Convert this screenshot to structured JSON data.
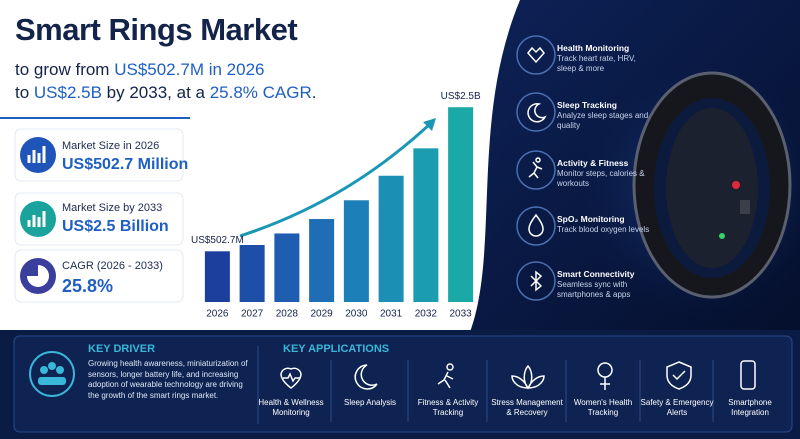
{
  "header": {
    "title": "Smart Rings Market",
    "subtitle": [
      [
        "to grow from ",
        "US$502.7M in 2026"
      ],
      [
        "to ",
        "US$2.5B",
        " by 2033, at a ",
        "25.8% CAGR",
        "."
      ]
    ]
  },
  "stats": [
    {
      "label": "Market Size in 2026",
      "value": "US$502.7 Million"
    },
    {
      "label": "Market Size by 2033",
      "value": "US$2.5 Billion"
    },
    {
      "label": "CAGR (2026 - 2033)",
      "value": "25.8%"
    }
  ],
  "chart_data": {
    "type": "bar",
    "categories": [
      "2026",
      "2027",
      "2028",
      "2029",
      "2030",
      "2031",
      "2032",
      "2033"
    ],
    "values": [
      502.7,
      590,
      750,
      950,
      1210,
      1550,
      1930,
      2500
    ],
    "value_labels": [
      "US$502.7M",
      null,
      null,
      null,
      null,
      null,
      null,
      "US$2.5B"
    ],
    "colors": [
      "#1c3f9e",
      "#1d4ea8",
      "#1e5db0",
      "#1e6db5",
      "#1d7fb8",
      "#1c8fb5",
      "#1b9daf",
      "#1aa9a6"
    ],
    "ylim": [
      -200,
      2600
    ]
  },
  "features": [
    {
      "title": "Health Monitoring",
      "text": "Track heart rate, HRV, sleep & more"
    },
    {
      "title": "Sleep Tracking",
      "text": "Analyze sleep stages and quality"
    },
    {
      "title": "Activity & Fitness",
      "text": "Monitor steps, calories & workouts"
    },
    {
      "title": "SpO₂ Monitoring",
      "text": "Track blood oxygen levels"
    },
    {
      "title": "Smart Connectivity",
      "text": "Seamless sync with smartphones & apps"
    }
  ],
  "key_driver": {
    "title": "KEY DRIVER",
    "text": "Growing health awareness, miniaturization of sensors, longer battery life, and increasing adoption of wearable technology are driving the growth of the smart rings market."
  },
  "applications": {
    "title": "KEY APPLICATIONS",
    "items": [
      "Health & Wellness Monitoring",
      "Sleep Analysis",
      "Fitness & Activity Tracking",
      "Stress Management & Recovery",
      "Women's Health Tracking",
      "Safety & Emergency Alerts",
      "Smartphone Integration"
    ]
  }
}
